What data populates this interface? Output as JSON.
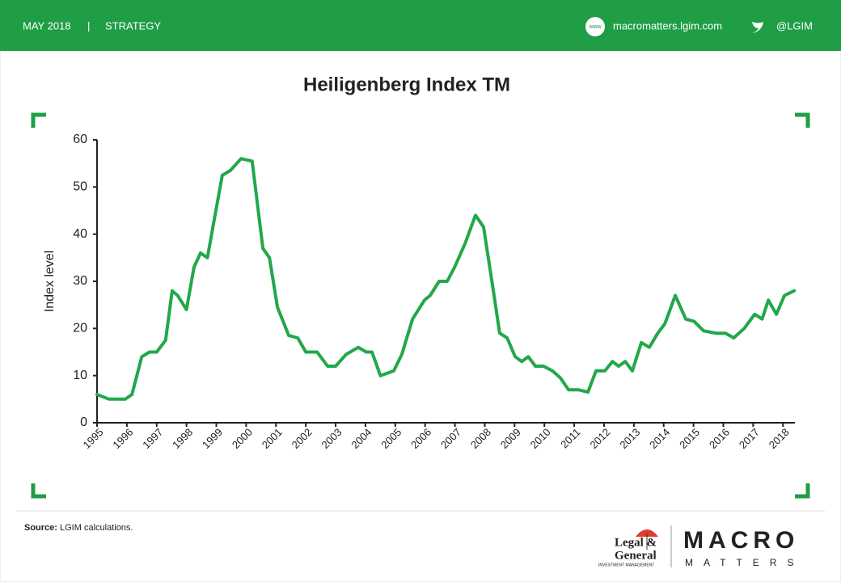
{
  "header": {
    "date": "MAY 2018",
    "separator": "|",
    "section": "STRATEGY",
    "web_icon": "www",
    "website": "macromatters.lgim.com",
    "twitter": "@LGIM"
  },
  "chart_data": {
    "type": "line",
    "title": "Heiligenberg Index TM",
    "y_label": "Index level",
    "color": "#22a84a",
    "x": [
      1995.0,
      1995.4,
      1995.95,
      1996.17,
      1996.5,
      1996.76,
      1997.0,
      1997.3,
      1997.52,
      1997.7,
      1998.0,
      1998.25,
      1998.47,
      1998.7,
      1998.9,
      1999.2,
      1999.47,
      1999.83,
      2000.2,
      2000.56,
      2000.78,
      2001.05,
      2001.43,
      2001.73,
      2002.0,
      2002.38,
      2002.73,
      2003.0,
      2003.35,
      2003.76,
      2004.03,
      2004.22,
      2004.5,
      2004.95,
      2005.22,
      2005.58,
      2005.98,
      2006.17,
      2006.47,
      2006.74,
      2006.99,
      2007.34,
      2007.69,
      2007.96,
      2008.29,
      2008.5,
      2008.75,
      2009.02,
      2009.24,
      2009.46,
      2009.7,
      2009.97,
      2010.27,
      2010.54,
      2010.81,
      2011.14,
      2011.46,
      2011.73,
      2012.03,
      2012.28,
      2012.49,
      2012.71,
      2012.95,
      2013.25,
      2013.52,
      2013.8,
      2014.04,
      2014.39,
      2014.74,
      2015.02,
      2015.34,
      2015.75,
      2016.07,
      2016.35,
      2016.7,
      2017.05,
      2017.3,
      2017.51,
      2017.78,
      2018.05,
      2018.38
    ],
    "values": [
      6,
      5,
      5,
      6,
      14,
      15,
      15,
      17.5,
      28,
      27,
      24,
      33,
      36,
      35,
      42,
      52.5,
      53.5,
      56,
      55.5,
      37,
      35,
      24.5,
      18.5,
      18,
      15,
      15,
      12,
      12,
      14.5,
      16,
      15,
      15,
      10,
      11,
      14.5,
      22,
      26,
      27,
      30,
      30,
      33,
      38,
      44,
      41.5,
      28,
      19,
      18,
      14,
      13,
      14,
      12,
      12,
      11,
      9.5,
      7,
      7,
      6.5,
      11,
      11,
      13,
      12,
      13,
      11,
      17,
      16,
      19,
      21,
      27,
      22,
      21.5,
      19.5,
      19,
      19,
      18,
      20,
      23,
      22,
      26,
      23,
      27,
      28
    ],
    "xlim": [
      1995,
      2018.4
    ],
    "xticks": [
      1995,
      1996,
      1997,
      1998,
      1999,
      2000,
      2001,
      2002,
      2003,
      2004,
      2005,
      2006,
      2007,
      2008,
      2009,
      2010,
      2011,
      2012,
      2013,
      2014,
      2015,
      2016,
      2017,
      2018
    ],
    "ylim": [
      0,
      60
    ],
    "yticks": [
      0,
      10,
      20,
      30,
      40,
      50,
      60
    ]
  },
  "footer": {
    "source_label": "Source:",
    "source_text": "LGIM calculations.",
    "lg_line1": "Legal &",
    "lg_line2": "General",
    "lg_line3": "INVESTMENT MANAGEMENT",
    "brand_top": "MACRO",
    "brand_bottom": "MATTERS"
  }
}
